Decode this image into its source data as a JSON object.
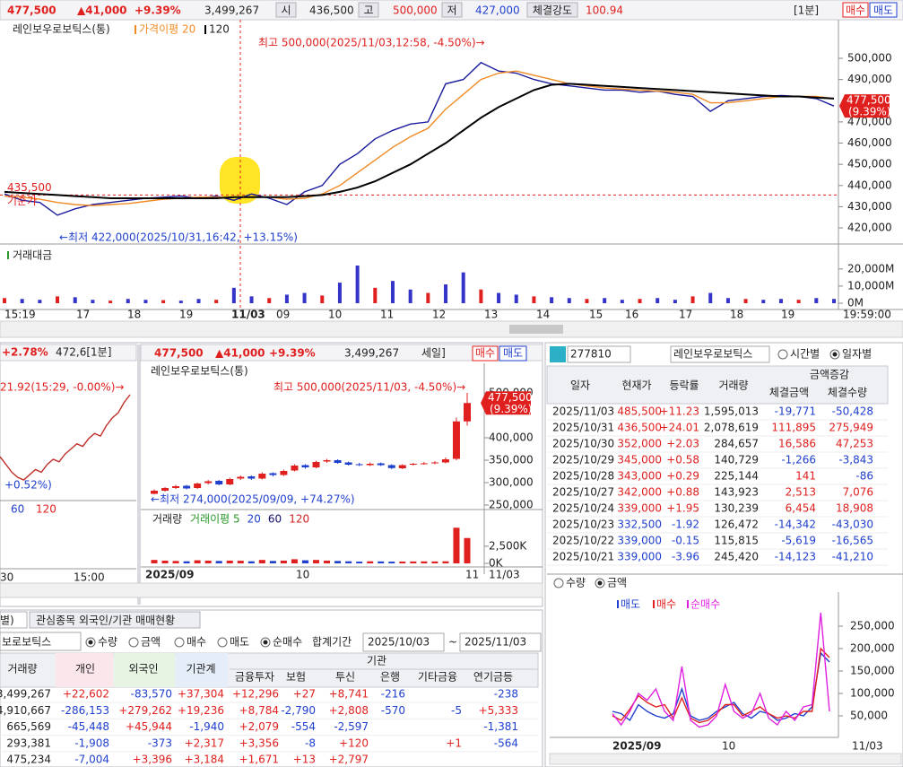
{
  "header": {
    "price": "477,500",
    "change": "▲41,000",
    "rate": "+9.39%",
    "volume": "3,499,267",
    "open_label": "시",
    "open": "436,500",
    "high_label": "고",
    "high": "500,000",
    "low_label": "저",
    "low": "427,000",
    "strength_label": "체결강도",
    "strength": "100.94",
    "interval": "[1분]",
    "buy": "매수",
    "sell": "매도"
  },
  "main_chart": {
    "type": "line",
    "title": "레인보우로보틱스(통)",
    "high_note": "최고 500,000(2025/11/03,12:58, -4.50%)→",
    "low_note": "←최저 422,000(2025/10/31,16:42, +13.15%)",
    "base": {
      "value": 435500,
      "label": "435,500"
    },
    "base_text": "기준가",
    "current": {
      "value": 477500,
      "label": "477,500"
    },
    "current_rate": "(9.39%)",
    "ylim": [
      412400,
      518200
    ],
    "yticks": [
      {
        "value": 420000,
        "label": "420,000"
      },
      {
        "value": 430000,
        "label": "430,000"
      },
      {
        "value": 440000,
        "label": "440,000"
      },
      {
        "value": 450000,
        "label": "450,000"
      },
      {
        "value": 460000,
        "label": "460,000"
      },
      {
        "value": 470000,
        "label": "470,000"
      },
      {
        "value": 490000,
        "label": "490,000"
      },
      {
        "value": 500000,
        "label": "500,000"
      }
    ],
    "x_labels": [
      "15:19",
      "17",
      "18",
      "19",
      "11/03",
      "09",
      "10",
      "11",
      "12",
      "13",
      "14",
      "15",
      "16",
      "17",
      "18",
      "19"
    ],
    "time": "19:59:00",
    "series": [
      {
        "color": "#1a1a9c",
        "values": [
          436000,
          433000,
          432000,
          426000,
          429000,
          431000,
          432000,
          433000,
          434000,
          434500,
          435000,
          434000,
          435000,
          433000,
          436000,
          434000,
          431000,
          437000,
          440000,
          450000,
          455000,
          462000,
          466000,
          469000,
          470000,
          488000,
          490000,
          498000,
          494000,
          493000,
          490000,
          488000,
          487000,
          486000,
          485000,
          485000,
          484000,
          484500,
          483000,
          482000,
          475000,
          480000,
          481000,
          482000,
          482500,
          482000,
          481000,
          477500
        ]
      },
      {
        "name": "가격이평 20",
        "color": "#f08a24",
        "values": [
          435000,
          434500,
          433500,
          432000,
          431000,
          430500,
          431000,
          431500,
          432500,
          433500,
          434000,
          434500,
          434500,
          434500,
          434500,
          434500,
          433500,
          434000,
          436000,
          440000,
          446000,
          452000,
          458000,
          463000,
          467000,
          476000,
          483000,
          490000,
          493000,
          494000,
          492000,
          490000,
          488000,
          487000,
          486000,
          485500,
          485000,
          484500,
          484000,
          483000,
          479000,
          479000,
          480000,
          481000,
          482000,
          482000,
          482000,
          481000
        ]
      },
      {
        "name": "120",
        "color": "#000000",
        "values": [
          437000,
          436500,
          436000,
          435500,
          435000,
          434500,
          434000,
          434000,
          434000,
          434000,
          434000,
          434000,
          434000,
          434500,
          434500,
          434500,
          434500,
          435000,
          435500,
          437000,
          439000,
          442000,
          446000,
          450000,
          455000,
          460000,
          466000,
          472000,
          477000,
          481000,
          485000,
          487500,
          488000,
          487500,
          487000,
          486500,
          486000,
          485500,
          485000,
          484500,
          484000,
          483500,
          483000,
          482500,
          482000,
          482000,
          481500,
          481000
        ]
      }
    ],
    "volume": {
      "title": "거래대금",
      "color": "#3434c8",
      "ylim": [
        0,
        33000
      ],
      "yticks": [
        {
          "value": 0,
          "label": "0M"
        },
        {
          "value": 10000,
          "label": "10,000M"
        },
        {
          "value": 20000,
          "label": "20,000M"
        }
      ],
      "values": [
        3000,
        2500,
        2000,
        4000,
        3500,
        2000,
        1500,
        2500,
        2000,
        1800,
        1500,
        2500,
        2000,
        9000,
        4000,
        3000,
        5000,
        6000,
        4500,
        12000,
        22000,
        9000,
        13000,
        8000,
        6000,
        11000,
        18000,
        8000,
        6000,
        5000,
        4000,
        3500,
        3000,
        2500,
        3000,
        2000,
        2500,
        3000,
        2000,
        4000,
        6000,
        3000,
        2500,
        2000,
        2500,
        2000,
        3000,
        2500
      ]
    }
  },
  "mini_chart": {
    "type": "line",
    "rate": "+2.78%",
    "price": "472,6[1분]",
    "high_note": "21.92(15:29, -0.00%)→",
    "low_note": "+0.52%)",
    "legend": [
      "60",
      "120"
    ],
    "x_labels": [
      "30",
      "15:00"
    ],
    "color": "#c0302a",
    "values": [
      36,
      33,
      30,
      28,
      27,
      29,
      31,
      30,
      33,
      35,
      34,
      37,
      39,
      41,
      40,
      43,
      45,
      44,
      48,
      51,
      53,
      57,
      60
    ]
  },
  "mid_chart": {
    "type": "candlestick",
    "price": "477,500",
    "change": "▲41,000",
    "rate": "+9.39%",
    "volume_total": "3,499,267",
    "mode": "세일]",
    "buy": "매수",
    "sell": "매도",
    "title": "레인보우로보틱스(통)",
    "high_note": "최고 500,000(2025/11/03, -4.50%)→",
    "low_note": "←최저 274,000(2025/09/09, +74.27%)",
    "current": {
      "value": 477500,
      "label": "477,500"
    },
    "current_rate": "(9.39%)",
    "up_color": "#e0201f",
    "down_color": "#1f3fcf",
    "ylim": [
      240000,
      566000
    ],
    "yticks": [
      {
        "value": 250000,
        "label": "250,000"
      },
      {
        "value": 300000,
        "label": "300,000"
      },
      {
        "value": 350000,
        "label": "350,000"
      },
      {
        "value": 400000,
        "label": "400,000"
      },
      {
        "value": 500000,
        "label": "500,000"
      }
    ],
    "open": [
      275000,
      282000,
      288000,
      293000,
      288000,
      299000,
      304000,
      296000,
      309000,
      314000,
      309000,
      321000,
      317000,
      327000,
      339000,
      334000,
      347000,
      350000,
      345000,
      341000,
      339000,
      343000,
      339000,
      332000,
      340000,
      342000,
      343000,
      345000,
      353000,
      436500
    ],
    "high": [
      285000,
      290000,
      295000,
      295000,
      300000,
      306000,
      306000,
      311000,
      316000,
      316000,
      323000,
      323000,
      329000,
      341000,
      341000,
      349000,
      353000,
      352000,
      347000,
      344000,
      345000,
      345000,
      341000,
      341000,
      344000,
      346000,
      348000,
      356000,
      445000,
      500000
    ],
    "low": [
      274000,
      280000,
      286000,
      285000,
      286000,
      296000,
      294000,
      294000,
      306000,
      306000,
      307000,
      314000,
      315000,
      325000,
      331000,
      332000,
      344000,
      342000,
      338000,
      337000,
      337000,
      337000,
      330000,
      330000,
      338000,
      340000,
      341000,
      343000,
      350000,
      427000
    ],
    "close": [
      282000,
      288000,
      292000,
      287000,
      298000,
      303000,
      296000,
      308000,
      313000,
      309000,
      320000,
      317000,
      326000,
      338000,
      334000,
      346000,
      350000,
      344000,
      340000,
      339000,
      342000,
      339000,
      332500,
      339000,
      342000,
      343000,
      345000,
      352000,
      436500,
      477500
    ],
    "volume": {
      "title": "거래량",
      "legend": [
        {
          "label": "거래이평 5",
          "color": "#2a9a2a"
        },
        {
          "label": "20",
          "color": "#1f3fcf"
        },
        {
          "label": "60",
          "color": "#10106a"
        },
        {
          "label": "120",
          "color": "#d02020"
        }
      ],
      "ylim": [
        0,
        7200
      ],
      "yticks": [
        {
          "value": 0,
          "label": "0K"
        },
        {
          "value": 2500,
          "label": "2,500K"
        }
      ],
      "values": [
        500,
        400,
        350,
        300,
        450,
        400,
        350,
        400,
        380,
        300,
        500,
        350,
        400,
        600,
        450,
        500,
        400,
        350,
        300,
        250,
        300,
        280,
        250,
        260,
        280,
        290,
        280,
        300,
        5200,
        3700
      ]
    },
    "x_labels": [
      "2025/09",
      "10",
      "11",
      "11/03"
    ]
  },
  "right_panel": {
    "code": "277810",
    "name": "레인보우로보틱스",
    "view_options": [
      "시간별",
      "일자별"
    ],
    "group_header": "금액증감",
    "columns": [
      "일자",
      "현재가",
      "등락률",
      "거래량",
      "체결금액",
      "체결수량"
    ],
    "rows": [
      [
        "2025/11/03",
        "485,500",
        "+11.23",
        "1,595,013",
        "-19,771",
        "-50,428"
      ],
      [
        "2025/10/31",
        "436,500",
        "+24.01",
        "2,078,619",
        "111,895",
        "275,949"
      ],
      [
        "2025/10/30",
        "352,000",
        "+2.03",
        "284,657",
        "16,586",
        "47,253"
      ],
      [
        "2025/10/29",
        "345,000",
        "+0.58",
        "140,729",
        "-1,266",
        "-3,843"
      ],
      [
        "2025/10/28",
        "343,000",
        "+0.29",
        "225,144",
        "141",
        "-86"
      ],
      [
        "2025/10/27",
        "342,000",
        "+0.88",
        "143,923",
        "2,513",
        "7,076"
      ],
      [
        "2025/10/24",
        "339,000",
        "+1.95",
        "130,239",
        "6,454",
        "18,908"
      ],
      [
        "2025/10/23",
        "332,500",
        "-1.92",
        "126,472",
        "-14,342",
        "-43,030"
      ],
      [
        "2025/10/22",
        "339,000",
        "-0.15",
        "115,815",
        "-5,619",
        "-16,565"
      ],
      [
        "2025/10/21",
        "339,000",
        "-3.96",
        "245,420",
        "-14,123",
        "-41,210"
      ]
    ],
    "chart": {
      "type": "line",
      "options": [
        "수량",
        "금액"
      ],
      "ylim": [
        2000,
        322000
      ],
      "yticks": [
        {
          "value": 50000,
          "label": "50,000"
        },
        {
          "value": 100000,
          "label": "100,000"
        },
        {
          "value": 150000,
          "label": "150,000"
        },
        {
          "value": 200000,
          "label": "200,000"
        },
        {
          "value": 250000,
          "label": "250,000"
        }
      ],
      "x_labels": [
        "2025/09",
        "10",
        "11/03"
      ],
      "series": [
        {
          "name": "매도",
          "color": "#1f3fcf",
          "values": [
            60000,
            55000,
            40000,
            75000,
            60000,
            50000,
            45000,
            55000,
            110000,
            50000,
            40000,
            45000,
            60000,
            70000,
            80000,
            55000,
            45000,
            60000,
            55000,
            40000,
            45000,
            55000,
            50000,
            70000,
            190000,
            170000
          ]
        },
        {
          "name": "매수",
          "color": "#e0201f",
          "values": [
            50000,
            40000,
            65000,
            95000,
            80000,
            70000,
            75000,
            45000,
            90000,
            45000,
            35000,
            40000,
            55000,
            75000,
            75000,
            50000,
            60000,
            70000,
            55000,
            45000,
            50000,
            45000,
            60000,
            60000,
            200000,
            180000
          ]
        },
        {
          "name": "순매수",
          "color": "#e020e0",
          "values": [
            55000,
            30000,
            60000,
            100000,
            85000,
            110000,
            60000,
            40000,
            160000,
            40000,
            25000,
            30000,
            50000,
            120000,
            60000,
            45000,
            55000,
            100000,
            45000,
            30000,
            60000,
            40000,
            70000,
            75000,
            280000,
            60000
          ]
        }
      ]
    }
  },
  "bottom_panel": {
    "tabs": [
      "별)",
      "관심종목 외국인/기관 매매현황"
    ],
    "stock": "보로보틱스",
    "options": [
      "수량",
      "금액"
    ],
    "side_options": [
      "매수",
      "매도",
      "순매수"
    ],
    "period_label": "합계기간",
    "from": "2025/10/03",
    "tilde": "~",
    "to": "2025/11/03",
    "group_header": "기관",
    "columns": [
      "거래량",
      "개인",
      "외국인",
      "기관계",
      "금융투자",
      "보험",
      "투신",
      "은행",
      "기타금융",
      "연기금등"
    ],
    "rows": [
      [
        "3,499,267",
        "+22,602",
        "-83,570",
        "+37,304",
        "+12,296",
        "+27",
        "+8,741",
        "-216",
        null,
        "-238"
      ],
      [
        "4,910,667",
        "-286,153",
        "+279,262",
        "+19,236",
        "+8,784",
        "-2,790",
        "+2,808",
        "-570",
        "-5",
        "+5,333"
      ],
      [
        "665,569",
        "-45,448",
        "+45,944",
        "-1,940",
        "+2,079",
        "-554",
        "-2,597",
        null,
        null,
        "-1,381"
      ],
      [
        "293,381",
        "-1,908",
        "-373",
        "+2,317",
        "+3,356",
        "-8",
        "+120",
        null,
        "+1",
        "-564"
      ],
      [
        "475,234",
        "-7,004",
        "+3,396",
        "+3,184",
        "+1,671",
        "+13",
        "+2,797",
        null,
        null,
        null
      ]
    ]
  }
}
